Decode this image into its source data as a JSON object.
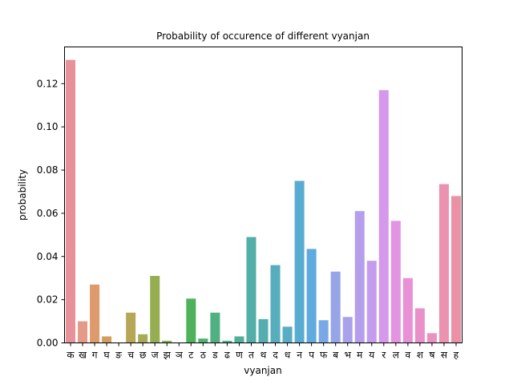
{
  "chart_data": {
    "type": "bar",
    "title": "Probability of occurence of different vyanjan",
    "xlabel": "vyanjan",
    "ylabel": "probability",
    "ylim": [
      0,
      0.137
    ],
    "yticks": [
      0.0,
      0.02,
      0.04,
      0.06,
      0.08,
      0.1,
      0.12
    ],
    "ytick_labels": [
      "0.00",
      "0.02",
      "0.04",
      "0.06",
      "0.08",
      "0.10",
      "0.12"
    ],
    "grid": false,
    "categories": [
      "क",
      "ख",
      "ग",
      "घ",
      "ङ",
      "च",
      "छ",
      "ज",
      "झ",
      "ञ",
      "ट",
      "ठ",
      "ड",
      "ढ",
      "ण",
      "त",
      "थ",
      "द",
      "ध",
      "न",
      "प",
      "फ",
      "ब",
      "भ",
      "म",
      "य",
      "र",
      "ल",
      "व",
      "श",
      "ष",
      "स",
      "ह"
    ],
    "values": [
      0.131,
      0.01,
      0.027,
      0.003,
      0.0,
      0.014,
      0.004,
      0.031,
      0.001,
      0.0,
      0.0205,
      0.002,
      0.014,
      0.001,
      0.003,
      0.049,
      0.011,
      0.036,
      0.0075,
      0.075,
      0.0435,
      0.0105,
      0.033,
      0.012,
      0.061,
      0.038,
      0.117,
      0.0565,
      0.03,
      0.016,
      0.0045,
      0.0735,
      0.068
    ],
    "colors": [
      "#e9919b",
      "#e39b88",
      "#de9a6c",
      "#d29e5d",
      "#c8a25a",
      "#b6a757",
      "#a6ac56",
      "#96ae51",
      "#83b351",
      "#69b84f",
      "#4db25b",
      "#4eb171",
      "#4fb182",
      "#50b18e",
      "#51b09a",
      "#52aea6",
      "#54aeaf",
      "#56adbb",
      "#58adc5",
      "#58acd2",
      "#5faade",
      "#7aa8e5",
      "#97a4e8",
      "#a9a1ea",
      "#b59fec",
      "#c59ced",
      "#d698eb",
      "#e294e3",
      "#e891d6",
      "#ea90c9",
      "#eb91bd",
      "#eb92b0",
      "#eb91a6"
    ]
  }
}
